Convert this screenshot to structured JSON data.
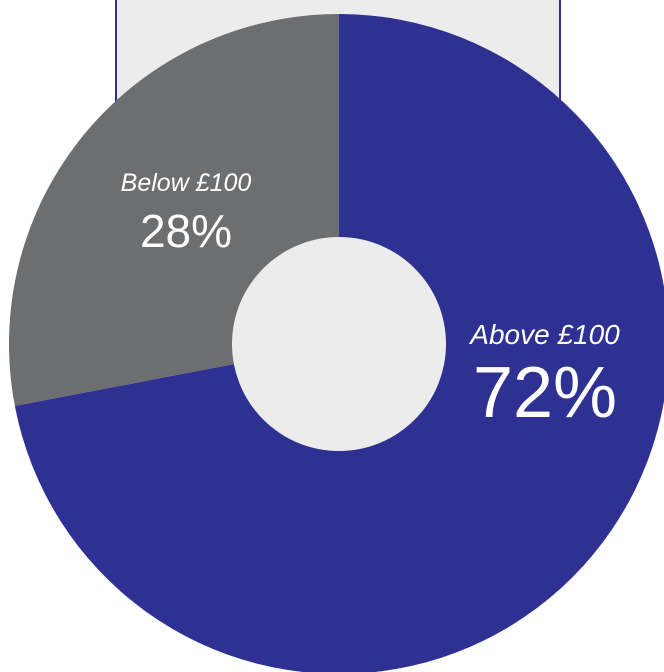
{
  "chart_data": {
    "type": "pie",
    "categories": [
      "Above £100",
      "Below £100"
    ],
    "values": [
      72,
      28
    ],
    "value_labels": [
      "72%",
      "28%"
    ],
    "colors": [
      "#2e3192",
      "#6d6e70"
    ],
    "donut_hole_color": "#ececec",
    "background_panel_color": "#ececec",
    "legend": "none"
  }
}
